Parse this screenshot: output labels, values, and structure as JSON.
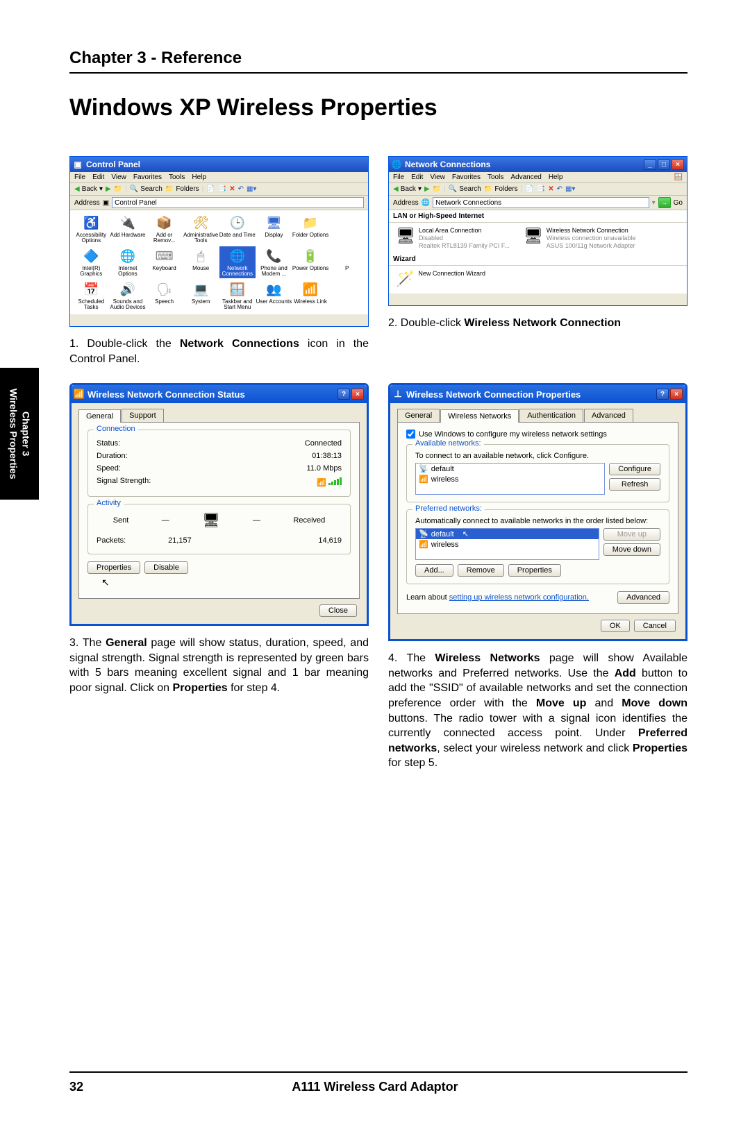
{
  "header": {
    "chapter": "Chapter 3 - Reference"
  },
  "title": "Windows XP Wireless Properties",
  "side_tab": {
    "line1": "Chapter 3",
    "line2": "Wireless Properties"
  },
  "footer": {
    "page": "32",
    "product": "A111 Wireless Card Adaptor"
  },
  "cp_window": {
    "title": "Control Panel",
    "menu": [
      "File",
      "Edit",
      "View",
      "Favorites",
      "Tools",
      "Help"
    ],
    "toolbar_back": "Back",
    "toolbar_search": "Search",
    "toolbar_folders": "Folders",
    "addr_label": "Address",
    "addr_value": "Control Panel",
    "icons": [
      {
        "label": "Accessibility Options",
        "glyph": "♿",
        "color": "#3a3"
      },
      {
        "label": "Add Hardware",
        "glyph": "🔌",
        "color": "#c80"
      },
      {
        "label": "Add or Remov...",
        "glyph": "📦",
        "color": "#888"
      },
      {
        "label": "Administrative Tools",
        "glyph": "🛠",
        "color": "#c80"
      },
      {
        "label": "Date and Time",
        "glyph": "🕒",
        "color": "#36c"
      },
      {
        "label": "Display",
        "glyph": "🖥",
        "color": "#36c"
      },
      {
        "label": "Folder Options",
        "glyph": "📁",
        "color": "#cc8"
      },
      {
        "label": "",
        "glyph": "",
        "color": "#fff"
      },
      {
        "label": "Intel(R) Graphics",
        "glyph": "🔷",
        "color": "#36c"
      },
      {
        "label": "Internet Options",
        "glyph": "🌐",
        "color": "#36c"
      },
      {
        "label": "Keyboard",
        "glyph": "⌨",
        "color": "#888"
      },
      {
        "label": "Mouse",
        "glyph": "🖱",
        "color": "#888"
      },
      {
        "label": "Network Connections",
        "glyph": "🌐",
        "color": "#36c",
        "selected": true
      },
      {
        "label": "Phone and Modem ...",
        "glyph": "📞",
        "color": "#c80"
      },
      {
        "label": "Power Options",
        "glyph": "🔋",
        "color": "#3a3"
      },
      {
        "label": "P",
        "glyph": "",
        "color": "#fff"
      },
      {
        "label": "Scheduled Tasks",
        "glyph": "📅",
        "color": "#cc8"
      },
      {
        "label": "Sounds and Audio Devices",
        "glyph": "🔊",
        "color": "#888"
      },
      {
        "label": "Speech",
        "glyph": "🗣",
        "color": "#888"
      },
      {
        "label": "System",
        "glyph": "💻",
        "color": "#36c"
      },
      {
        "label": "Taskbar and Start Menu",
        "glyph": "🪟",
        "color": "#36c"
      },
      {
        "label": "User Accounts",
        "glyph": "👥",
        "color": "#c80"
      },
      {
        "label": "Wireless Link",
        "glyph": "📶",
        "color": "#36c"
      },
      {
        "label": "",
        "glyph": "",
        "color": "#fff"
      }
    ]
  },
  "nc_window": {
    "title": "Network Connections",
    "menu": [
      "File",
      "Edit",
      "View",
      "Favorites",
      "Tools",
      "Advanced",
      "Help"
    ],
    "toolbar_back": "Back",
    "toolbar_search": "Search",
    "toolbar_folders": "Folders",
    "addr_label": "Address",
    "addr_value": "Network Connections",
    "go": "Go",
    "group1": "LAN or High-Speed Internet",
    "lan": {
      "name": "Local Area Connection",
      "state": "Disabled",
      "device": "Realtek RTL8139 Family PCI F..."
    },
    "wlan": {
      "name": "Wireless Network Connection",
      "state": "Wireless connection unavailable",
      "device": "ASUS 100/11g Network Adapter"
    },
    "group2": "Wizard",
    "wizard": "New Connection Wizard"
  },
  "step1": {
    "num": "1.",
    "text_a": "Double-click the ",
    "bold": "Network Connections",
    "text_b": " icon in the Control Panel."
  },
  "step2": {
    "num": "2.",
    "text_a": "Double-click ",
    "bold": "Wireless Network Connection"
  },
  "status_dialog": {
    "title": "Wireless Network Connection Status",
    "tabs": [
      "General",
      "Support"
    ],
    "connection_legend": "Connection",
    "activity_legend": "Activity",
    "status_label": "Status:",
    "status_val": "Connected",
    "duration_label": "Duration:",
    "duration_val": "01:38:13",
    "speed_label": "Speed:",
    "speed_val": "11.0 Mbps",
    "signal_label": "Signal Strength:",
    "sent": "Sent",
    "received": "Received",
    "packets_label": "Packets:",
    "packets_sent": "21,157",
    "packets_recv": "14,619",
    "btn_props": "Properties",
    "btn_disable": "Disable",
    "btn_close": "Close"
  },
  "props_dialog": {
    "title": "Wireless Network Connection Properties",
    "tabs": [
      "General",
      "Wireless Networks",
      "Authentication",
      "Advanced"
    ],
    "cb_label": "Use Windows to configure my wireless network settings",
    "avail_legend": "Available networks:",
    "avail_hint": "To connect to an available network, click Configure.",
    "avail_items": [
      "default",
      "wireless"
    ],
    "btn_configure": "Configure",
    "btn_refresh": "Refresh",
    "pref_legend": "Preferred networks:",
    "pref_hint": "Automatically connect to available networks in the order listed below:",
    "pref_items": [
      "default",
      "wireless"
    ],
    "btn_moveup": "Move up",
    "btn_movedown": "Move down",
    "btn_add": "Add...",
    "btn_remove": "Remove",
    "btn_props": "Properties",
    "learn_a": "Learn about ",
    "learn_link": "setting up wireless network configuration.",
    "btn_advanced": "Advanced",
    "btn_ok": "OK",
    "btn_cancel": "Cancel"
  },
  "step3": {
    "num": "3.",
    "parts": [
      {
        "t": "The "
      },
      {
        "b": "General"
      },
      {
        "t": " page will show status, duration, speed, and signal strength. Signal strength is represented by green bars with 5 bars meaning excellent signal and 1 bar meaning poor signal. Click on "
      },
      {
        "b": "Properties"
      },
      {
        "t": " for step 4."
      }
    ]
  },
  "step4": {
    "num": "4.",
    "parts": [
      {
        "t": "The "
      },
      {
        "b": "Wireless Networks"
      },
      {
        "t": " page will show Available networks and Preferred networks. Use the "
      },
      {
        "b": "Add"
      },
      {
        "t": " button to add the \"SSID\" of available networks and set the connection preference order with the "
      },
      {
        "b": "Move up"
      },
      {
        "t": " and "
      },
      {
        "b": "Move down"
      },
      {
        "t": " buttons. The radio tower with a signal icon identifies the currently connected access point. Under "
      },
      {
        "b": "Preferred networks"
      },
      {
        "t": ", select your wireless network and click "
      },
      {
        "b": "Properties"
      },
      {
        "t": " for step 5."
      }
    ]
  }
}
